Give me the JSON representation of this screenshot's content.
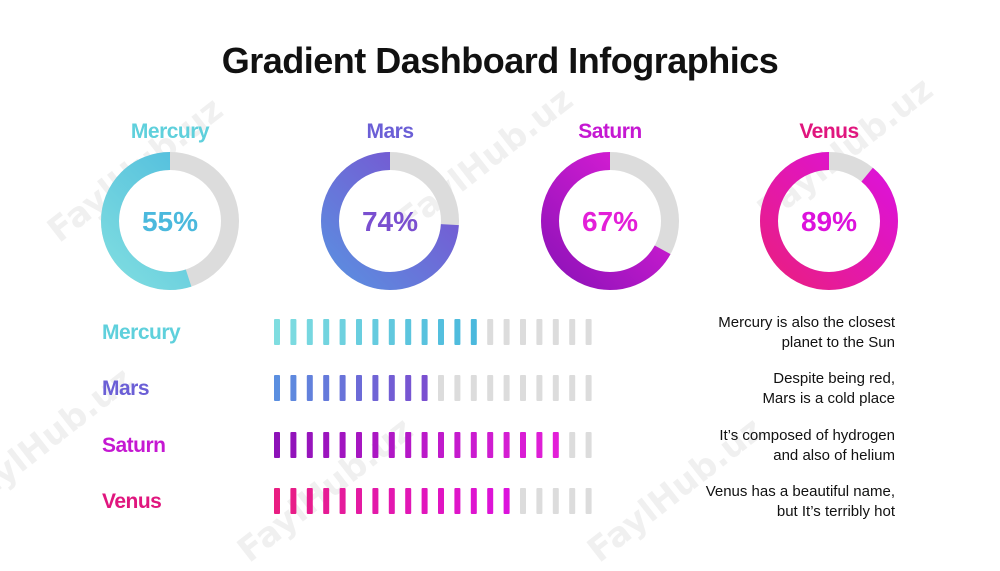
{
  "title": "Gradient Dashboard Infographics",
  "watermark_text": "FaylHub.uz",
  "chart_data": {
    "type": "donut-and-bar",
    "series": [
      {
        "name": "Mercury",
        "value": 55,
        "display": "55%",
        "description_line1": "Mercury is also the closest",
        "description_line2": "planet to the Sun",
        "color_start": "#7fdde0",
        "color_end": "#4bb9dd"
      },
      {
        "name": "Mars",
        "value": 74,
        "display": "74%",
        "description_line1": "Despite being red,",
        "description_line2": "Mars is a cold place",
        "color_start": "#5b8fe0",
        "color_end": "#7a4fd0"
      },
      {
        "name": "Saturn",
        "value": 67,
        "display": "67%",
        "description_line1": "It’s composed of hydrogen",
        "description_line2": "and also of helium",
        "color_start": "#8d12b8",
        "color_end": "#e31fd8"
      },
      {
        "name": "Venus",
        "value": 89,
        "display": "89%",
        "description_line1": "Venus has a beautiful name,",
        "description_line2": "but It’s terribly hot",
        "color_start": "#e91e82",
        "color_end": "#dc12dc"
      }
    ],
    "bar_segments": 20,
    "bar_filled_segments": [
      13,
      10,
      18,
      15
    ],
    "track_color": "#dcdcdc"
  }
}
